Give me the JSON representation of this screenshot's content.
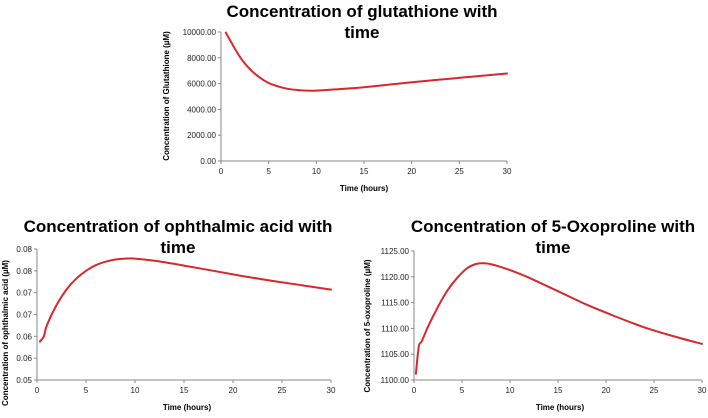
{
  "colors": {
    "series": "#d9272e",
    "axis": "#888888"
  },
  "chart_data": [
    {
      "id": "glutathione",
      "type": "line",
      "title_lines": [
        "Concentration of glutathione with",
        "time"
      ],
      "xlabel": "Time (hours)",
      "ylabel": "Concentration of Glutathione  (µM)",
      "xlim": [
        0,
        30
      ],
      "ylim": [
        0,
        10000
      ],
      "x_ticks": [
        "0",
        "5",
        "10",
        "15",
        "20",
        "25",
        "30"
      ],
      "y_ticks": [
        "0.00",
        "2000.00",
        "4000.00",
        "6000.00",
        "8000.00",
        "10000.00"
      ],
      "series": [
        {
          "x": [
            0.5,
            1,
            2,
            3,
            4,
            5,
            6,
            7,
            8,
            9,
            10,
            12,
            15,
            18,
            21,
            24,
            27,
            30
          ],
          "values": [
            9950,
            9300,
            8050,
            7150,
            6500,
            6050,
            5780,
            5600,
            5500,
            5460,
            5460,
            5550,
            5720,
            5950,
            6170,
            6380,
            6580,
            6780
          ]
        }
      ]
    },
    {
      "id": "ophthalmic",
      "type": "line",
      "title_lines": [
        "Concentration of ophthalmic acid with",
        "time"
      ],
      "xlabel": "Time (hours)",
      "ylabel": "Concentration of ophthalmic acid  (µM)",
      "xlim": [
        0,
        30
      ],
      "ylim": [
        0.05,
        0.08
      ],
      "x_ticks": [
        "0",
        "5",
        "10",
        "15",
        "20",
        "25",
        "30"
      ],
      "y_ticks": [
        "0.05",
        "0.06",
        "0.06",
        "0.07",
        "0.07",
        "0.08",
        "0.08"
      ],
      "series": [
        {
          "x": [
            0.3,
            0.7,
            1,
            2,
            3,
            4,
            5,
            6,
            7,
            8,
            9,
            10,
            12,
            15,
            18,
            21,
            24,
            27,
            30
          ],
          "values": [
            0.0588,
            0.06,
            0.0625,
            0.0672,
            0.0707,
            0.0732,
            0.075,
            0.0763,
            0.0771,
            0.0776,
            0.0778,
            0.0778,
            0.0773,
            0.0762,
            0.075,
            0.0738,
            0.0727,
            0.0717,
            0.0707
          ]
        }
      ]
    },
    {
      "id": "oxoproline",
      "type": "line",
      "title_lines": [
        "Concentration of 5-Oxoproline with",
        "time"
      ],
      "xlabel": "Time (hours)",
      "ylabel": "Concentration of 5-oxoproline  (µM)",
      "xlim": [
        0,
        30
      ],
      "ylim": [
        1100,
        1125
      ],
      "x_ticks": [
        "0",
        "5",
        "10",
        "15",
        "20",
        "25",
        "30"
      ],
      "y_ticks": [
        "1100.00",
        "1105.00",
        "1110.00",
        "1115.00",
        "1120.00",
        "1125.00"
      ],
      "series": [
        {
          "x": [
            0.2,
            0.5,
            0.8,
            1.5,
            2.5,
            3.5,
            4.5,
            5.5,
            6.5,
            7.5,
            8.5,
            10,
            12,
            15,
            18,
            21,
            24,
            27,
            30
          ],
          "values": [
            1101.2,
            1106.5,
            1107.5,
            1110.5,
            1114.2,
            1117.4,
            1119.8,
            1121.6,
            1122.5,
            1122.6,
            1122.2,
            1121.3,
            1119.8,
            1117.2,
            1114.6,
            1112.3,
            1110.2,
            1108.5,
            1107.0
          ]
        }
      ]
    }
  ]
}
